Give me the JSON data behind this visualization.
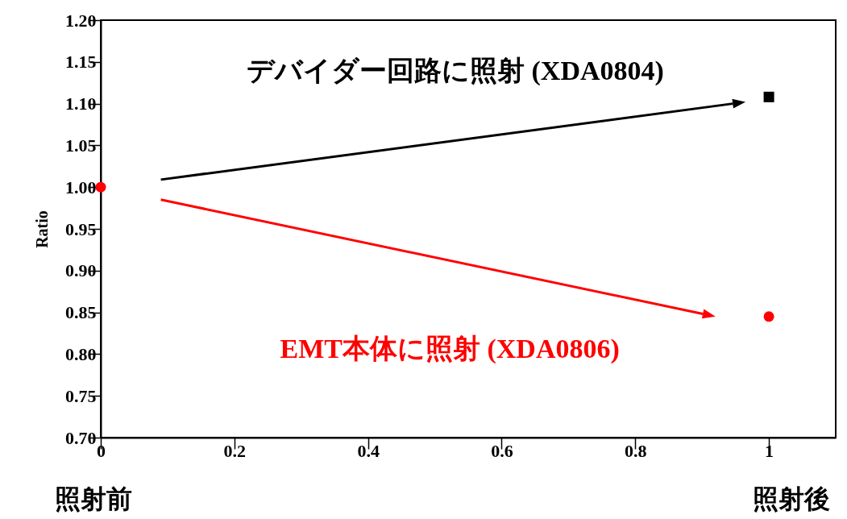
{
  "chart_data": {
    "type": "scatter",
    "ylabel": "Ratio",
    "xlim": [
      0,
      1.1
    ],
    "xticks": [
      0,
      0.2,
      0.4,
      0.6,
      0.8,
      1
    ],
    "ylim": [
      0.7,
      1.2
    ],
    "yticks": [
      {
        "value": 0.7,
        "label": "0.70"
      },
      {
        "value": 0.75,
        "label": "0.75"
      },
      {
        "value": 0.8,
        "label": "0.80"
      },
      {
        "value": 0.85,
        "label": "0.85"
      },
      {
        "value": 0.9,
        "label": "0.90"
      },
      {
        "value": 0.95,
        "label": "0.95"
      },
      {
        "value": 1.0,
        "label": "1.00"
      },
      {
        "value": 1.05,
        "label": "1.05"
      },
      {
        "value": 1.1,
        "label": "1.10"
      },
      {
        "value": 1.15,
        "label": "1.15"
      },
      {
        "value": 1.2,
        "label": "1.20"
      }
    ],
    "grid": false,
    "x": [
      0,
      1
    ],
    "series": [
      {
        "name": "デバイダー回路に照射 (XDA0804)",
        "color": "#000000",
        "marker": "square",
        "values": [
          null,
          1.108
        ]
      },
      {
        "name": "EMT本体に照射 (XDA0806)",
        "color": "#ff0000",
        "marker": "circle",
        "values": [
          1.0,
          0.845
        ]
      }
    ],
    "annotations": [
      "照射前",
      "照射後"
    ]
  }
}
